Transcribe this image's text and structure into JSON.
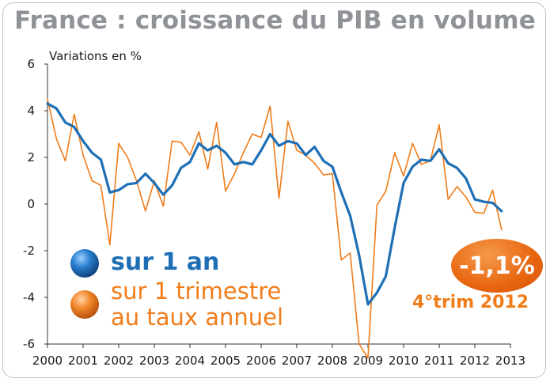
{
  "chart_data": {
    "type": "line",
    "title": "France : croissance du PIB en volume",
    "ylabel": "Variations en %",
    "ylim": [
      -6,
      6
    ],
    "yticks": [
      -6,
      -4,
      -2,
      0,
      2,
      4,
      6
    ],
    "xlim": [
      2000,
      2013
    ],
    "xticks": [
      "2000",
      "2001",
      "2002",
      "2003",
      "2004",
      "2005",
      "2006",
      "2007",
      "2008",
      "2009",
      "2010",
      "2011",
      "2012",
      "2013"
    ],
    "grid": false,
    "series": [
      {
        "name": "sur 1 an",
        "color": "#1f6fb5",
        "x": [
          2000,
          2000.25,
          2000.5,
          2000.75,
          2001,
          2001.25,
          2001.5,
          2001.75,
          2002,
          2002.25,
          2002.5,
          2002.75,
          2003,
          2003.25,
          2003.5,
          2003.75,
          2004,
          2004.25,
          2004.5,
          2004.75,
          2005,
          2005.25,
          2005.5,
          2005.75,
          2006,
          2006.25,
          2006.5,
          2006.75,
          2007,
          2007.25,
          2007.5,
          2007.75,
          2008,
          2008.25,
          2008.5,
          2008.75,
          2009,
          2009.25,
          2009.5,
          2009.75,
          2010,
          2010.25,
          2010.5,
          2010.75,
          2011,
          2011.25,
          2011.5,
          2011.75,
          2012,
          2012.25,
          2012.5,
          2012.75
        ],
        "values": [
          4.3,
          4.1,
          3.5,
          3.3,
          2.7,
          2.2,
          1.9,
          0.5,
          0.6,
          0.85,
          0.9,
          1.3,
          0.9,
          0.4,
          0.8,
          1.55,
          1.8,
          2.6,
          2.3,
          2.5,
          2.2,
          1.7,
          1.8,
          1.7,
          2.3,
          3.0,
          2.5,
          2.7,
          2.6,
          2.1,
          2.45,
          1.85,
          1.6,
          0.5,
          -0.5,
          -2.2,
          -4.3,
          -3.8,
          -3.1,
          -1.0,
          0.9,
          1.6,
          1.9,
          1.85,
          2.35,
          1.75,
          1.55,
          1.1,
          0.2,
          0.1,
          0.05,
          -0.3
        ]
      },
      {
        "name": "sur 1 trimestre au taux annuel",
        "color": "#f07c1a",
        "x": [
          2000,
          2000.25,
          2000.5,
          2000.75,
          2001,
          2001.25,
          2001.5,
          2001.75,
          2002,
          2002.25,
          2002.5,
          2002.75,
          2003,
          2003.25,
          2003.5,
          2003.75,
          2004,
          2004.25,
          2004.5,
          2004.75,
          2005,
          2005.25,
          2005.5,
          2005.75,
          2006,
          2006.25,
          2006.5,
          2006.75,
          2007,
          2007.25,
          2007.5,
          2007.75,
          2008,
          2008.25,
          2008.5,
          2008.75,
          2009,
          2009.25,
          2009.5,
          2009.75,
          2010,
          2010.25,
          2010.5,
          2010.75,
          2011,
          2011.25,
          2011.5,
          2011.75,
          2012,
          2012.25,
          2012.5,
          2012.75
        ],
        "values": [
          4.5,
          2.8,
          1.85,
          3.85,
          2.1,
          1.0,
          0.8,
          -1.75,
          2.6,
          2.0,
          1.0,
          -0.3,
          1.0,
          -0.1,
          2.7,
          2.65,
          2.1,
          3.1,
          1.5,
          3.5,
          0.55,
          1.3,
          2.2,
          3.0,
          2.85,
          4.2,
          0.25,
          3.55,
          2.3,
          2.1,
          1.75,
          1.25,
          1.3,
          -2.4,
          -2.1,
          -6.0,
          -6.6,
          -0.05,
          0.55,
          2.2,
          1.2,
          2.6,
          1.7,
          1.85,
          3.4,
          0.2,
          0.75,
          0.3,
          -0.35,
          -0.4,
          0.6,
          -1.1
        ]
      }
    ],
    "legend": [
      {
        "label": "sur 1 an",
        "color": "#1f6fb5"
      },
      {
        "label": "sur 1 trimestre\nau taux annuel",
        "color": "#f07c1a"
      }
    ],
    "annotation": {
      "value": "-1,1%",
      "sub": "4°trim 2012"
    }
  }
}
